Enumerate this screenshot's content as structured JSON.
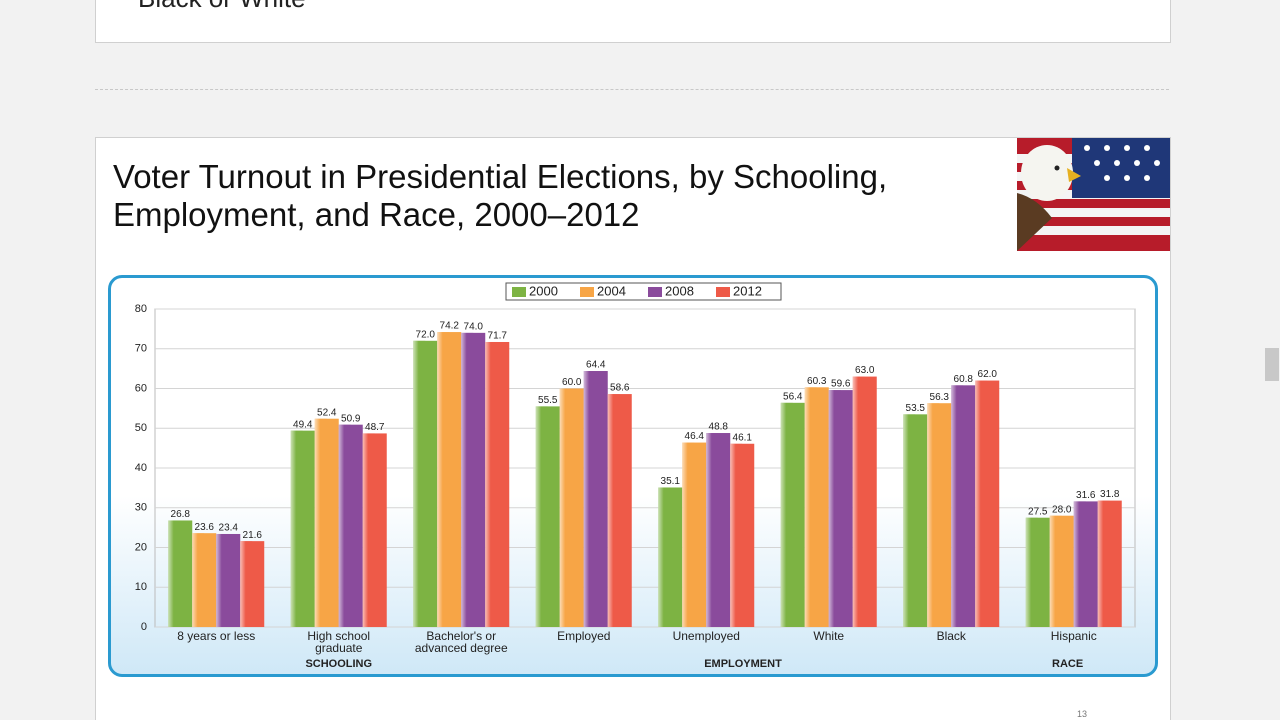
{
  "prev_slide": {
    "text": "Black or White"
  },
  "slide": {
    "title": "Voter Turnout in Presidential Elections, by Schooling,\nEmployment, and Race, 2000–2012",
    "page_number": "13"
  },
  "chart_data": {
    "type": "bar",
    "categories": [
      "8 years or less",
      "High school\ngraduate",
      "Bachelor's or\nadvanced degree",
      "Employed",
      "Unemployed",
      "White",
      "Black",
      "Hispanic"
    ],
    "groups": [
      "SCHOOLING",
      "EMPLOYMENT",
      "RACE"
    ],
    "series": [
      {
        "name": "2000",
        "color": "#7db343",
        "values": [
          26.8,
          49.4,
          72.0,
          55.5,
          35.1,
          56.4,
          53.5,
          27.5
        ],
        "value_labels": [
          "26.8",
          "49.4",
          "72.0",
          "55.5",
          "35.1",
          "56.4",
          "53.5",
          "27.5"
        ]
      },
      {
        "name": "2004",
        "color": "#f7a546",
        "values": [
          23.6,
          52.4,
          74.2,
          60.0,
          46.4,
          60.3,
          56.3,
          28.0
        ],
        "value_labels": [
          "23.6",
          "52.4",
          "74.2",
          "60.0",
          "46.4",
          "60.3",
          "56.3",
          "28.0"
        ]
      },
      {
        "name": "2008",
        "color": "#8a4b9c",
        "values": [
          23.4,
          50.9,
          74.0,
          64.4,
          48.8,
          59.6,
          60.8,
          31.6
        ],
        "value_labels": [
          "23.4",
          "50.9",
          "74.0",
          "64.4",
          "48.8",
          "59.6",
          "60.8",
          "31.6"
        ]
      },
      {
        "name": "2012",
        "color": "#ee5a48",
        "values": [
          21.6,
          48.7,
          71.7,
          58.6,
          46.1,
          63.0,
          62.0,
          31.8
        ],
        "value_labels": [
          "21.6",
          "48.7",
          "71.7",
          "58.6",
          "46.1",
          "63.0",
          "62.0",
          "31.8"
        ]
      }
    ],
    "ylim": [
      0,
      80
    ],
    "yticks": [
      0,
      10,
      20,
      30,
      40,
      50,
      60,
      70,
      80
    ],
    "grid": true,
    "legend": "top"
  }
}
